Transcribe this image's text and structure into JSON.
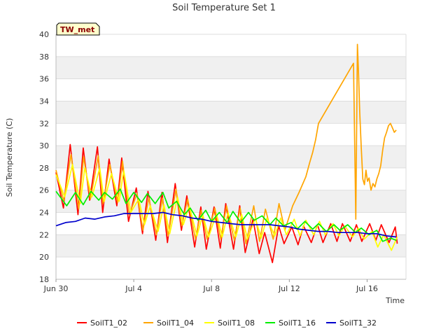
{
  "chart_data": {
    "type": "line",
    "title": "Soil Temperature Set 1",
    "xlabel": "Time",
    "ylabel": "Soil Temperature (C)",
    "badge": "TW_met",
    "ylim": [
      18,
      40
    ],
    "y_ticks": [
      18,
      20,
      22,
      24,
      26,
      28,
      30,
      32,
      34,
      36,
      38,
      40
    ],
    "xlim_days": [
      0,
      18
    ],
    "x_ticks": [
      {
        "label": "Jun 30",
        "day": 0
      },
      {
        "label": "Jul 4",
        "day": 4
      },
      {
        "label": "Jul 8",
        "day": 8
      },
      {
        "label": "Jul 12",
        "day": 12
      },
      {
        "label": "Jul 16",
        "day": 16
      }
    ],
    "grid": true,
    "legend_position": "bottom",
    "series": [
      {
        "name": "SoilT1_02",
        "color": "#ff0000",
        "x": [
          0.0,
          0.38,
          0.73,
          1.13,
          1.4,
          1.73,
          2.13,
          2.4,
          2.73,
          3.13,
          3.38,
          3.73,
          4.13,
          4.45,
          4.73,
          5.13,
          5.45,
          5.73,
          6.13,
          6.45,
          6.73,
          7.13,
          7.45,
          7.73,
          8.13,
          8.45,
          8.73,
          9.13,
          9.45,
          9.73,
          10.13,
          10.45,
          10.73,
          11.13,
          11.45,
          11.73,
          12.13,
          12.45,
          12.73,
          13.13,
          13.45,
          13.73,
          14.13,
          14.45,
          14.73,
          15.13,
          15.45,
          15.73,
          16.13,
          16.45,
          16.73,
          17.13,
          17.45,
          17.55
        ],
        "y": [
          27.6,
          24.4,
          30.1,
          23.8,
          29.8,
          25.1,
          29.9,
          24.0,
          28.8,
          24.6,
          28.9,
          23.2,
          26.2,
          22.1,
          25.9,
          21.5,
          25.8,
          21.3,
          26.6,
          22.4,
          25.5,
          20.9,
          24.5,
          20.7,
          24.5,
          20.8,
          24.8,
          20.7,
          24.6,
          20.4,
          23.4,
          20.3,
          22.2,
          19.5,
          22.8,
          21.2,
          22.7,
          21.1,
          22.8,
          21.3,
          22.9,
          21.3,
          23.0,
          21.4,
          23.0,
          21.4,
          22.9,
          21.4,
          23.0,
          21.5,
          22.9,
          21.3,
          22.7,
          21.2
        ]
      },
      {
        "name": "SoilT1_04",
        "color": "#ffa500",
        "x": [
          0.0,
          0.4,
          0.77,
          1.17,
          1.42,
          1.77,
          2.17,
          2.42,
          2.77,
          3.17,
          3.42,
          3.77,
          4.17,
          4.47,
          4.77,
          5.17,
          5.47,
          5.77,
          6.17,
          6.47,
          6.77,
          7.17,
          7.47,
          7.77,
          8.17,
          8.47,
          8.77,
          9.17,
          9.47,
          9.77,
          10.17,
          10.47,
          10.77,
          11.17,
          11.47,
          11.77,
          12.17,
          12.5,
          12.85,
          13.05,
          13.2,
          13.35,
          13.45,
          13.5,
          15.3,
          15.42,
          15.5,
          15.56,
          15.62,
          15.7,
          15.78,
          15.86,
          15.94,
          16.02,
          16.1,
          16.2,
          16.3,
          16.4,
          16.5,
          16.6,
          16.7,
          16.8,
          16.9,
          17.0,
          17.1,
          17.2,
          17.3,
          17.4,
          17.5
        ],
        "y": [
          27.8,
          25.0,
          29.2,
          24.3,
          29.0,
          25.2,
          29.1,
          24.8,
          28.3,
          24.9,
          28.6,
          23.8,
          25.7,
          22.4,
          25.3,
          22.0,
          25.3,
          21.9,
          26.1,
          22.8,
          25.2,
          21.6,
          24.2,
          21.6,
          24.4,
          21.6,
          24.6,
          21.5,
          24.4,
          21.2,
          24.6,
          21.4,
          24.3,
          21.6,
          24.8,
          22.4,
          24.6,
          25.8,
          27.2,
          28.5,
          29.4,
          30.5,
          31.5,
          32.0,
          37.4,
          23.4,
          39.1,
          36.5,
          33.0,
          29.8,
          27.0,
          26.5,
          27.8,
          26.8,
          27.1,
          26.0,
          26.6,
          26.3,
          27.0,
          27.5,
          28.2,
          29.6,
          30.7,
          31.2,
          31.8,
          32.0,
          31.6,
          31.2,
          31.4
        ]
      },
      {
        "name": "SoilT1_08",
        "color": "#ffff00",
        "x": [
          0.0,
          0.45,
          0.85,
          1.25,
          1.48,
          1.85,
          2.25,
          2.48,
          2.85,
          3.25,
          3.48,
          3.85,
          4.25,
          4.55,
          4.85,
          5.25,
          5.55,
          5.85,
          6.25,
          6.55,
          6.85,
          7.25,
          7.55,
          7.85,
          8.25,
          8.55,
          8.85,
          9.25,
          9.55,
          9.85,
          10.25,
          10.55,
          10.85,
          11.25,
          11.55,
          11.85,
          12.25,
          12.55,
          12.85,
          13.25,
          13.55,
          13.85,
          14.25,
          14.55,
          14.85,
          15.25,
          15.55,
          15.85,
          16.25,
          16.55,
          16.85,
          17.25,
          17.55
        ],
        "y": [
          27.4,
          25.4,
          28.3,
          24.8,
          28.0,
          25.4,
          28.0,
          25.0,
          27.5,
          25.0,
          27.8,
          24.0,
          25.2,
          22.9,
          24.6,
          22.3,
          24.7,
          22.1,
          25.4,
          22.9,
          24.6,
          21.9,
          23.8,
          21.8,
          23.9,
          21.8,
          24.0,
          21.8,
          23.8,
          21.6,
          23.5,
          21.7,
          23.5,
          21.9,
          23.5,
          22.0,
          23.4,
          21.9,
          23.3,
          22.0,
          23.2,
          22.0,
          23.0,
          21.9,
          22.8,
          21.8,
          22.6,
          21.6,
          22.3,
          20.9,
          22.0,
          20.6,
          21.8
        ]
      },
      {
        "name": "SoilT1_16",
        "color": "#00ee00",
        "x": [
          0.0,
          0.55,
          1.0,
          1.4,
          1.8,
          2.2,
          2.5,
          2.9,
          3.3,
          3.6,
          4.0,
          4.4,
          4.7,
          5.1,
          5.5,
          5.8,
          6.2,
          6.6,
          6.9,
          7.3,
          7.7,
          8.0,
          8.4,
          8.8,
          9.1,
          9.5,
          9.9,
          10.2,
          10.6,
          11.0,
          11.3,
          11.7,
          12.1,
          12.4,
          12.8,
          13.2,
          13.5,
          13.9,
          14.3,
          14.6,
          15.0,
          15.4,
          15.7,
          16.1,
          16.5,
          16.8,
          17.2,
          17.5
        ],
        "y": [
          25.9,
          24.6,
          25.8,
          24.7,
          25.9,
          25.1,
          25.8,
          25.2,
          26.1,
          24.8,
          25.8,
          24.9,
          25.7,
          24.8,
          25.8,
          24.4,
          25.0,
          23.8,
          24.4,
          23.3,
          24.2,
          23.2,
          24.0,
          23.1,
          24.1,
          23.1,
          24.0,
          23.3,
          23.7,
          22.9,
          23.5,
          22.8,
          23.1,
          22.5,
          23.2,
          22.5,
          23.0,
          22.3,
          22.9,
          22.4,
          22.9,
          22.2,
          22.6,
          22.0,
          22.4,
          21.4,
          21.7,
          21.5
        ]
      },
      {
        "name": "SoilT1_32",
        "color": "#0000cc",
        "x": [
          0.0,
          0.5,
          1.0,
          1.5,
          2.0,
          2.5,
          3.0,
          3.5,
          4.0,
          4.5,
          5.0,
          5.5,
          6.0,
          6.5,
          7.0,
          7.5,
          8.0,
          8.5,
          9.0,
          9.5,
          10.0,
          10.5,
          11.0,
          11.5,
          12.0,
          12.5,
          13.0,
          13.5,
          14.0,
          14.5,
          15.0,
          15.5,
          16.0,
          16.5,
          17.0,
          17.5
        ],
        "y": [
          22.8,
          23.1,
          23.2,
          23.5,
          23.4,
          23.6,
          23.7,
          23.9,
          23.9,
          23.9,
          23.9,
          24.0,
          23.8,
          23.7,
          23.5,
          23.4,
          23.2,
          23.1,
          23.0,
          22.9,
          22.9,
          22.9,
          22.9,
          22.8,
          22.7,
          22.5,
          22.4,
          22.3,
          22.3,
          22.2,
          22.2,
          22.2,
          22.1,
          22.1,
          21.9,
          21.8
        ]
      }
    ]
  }
}
